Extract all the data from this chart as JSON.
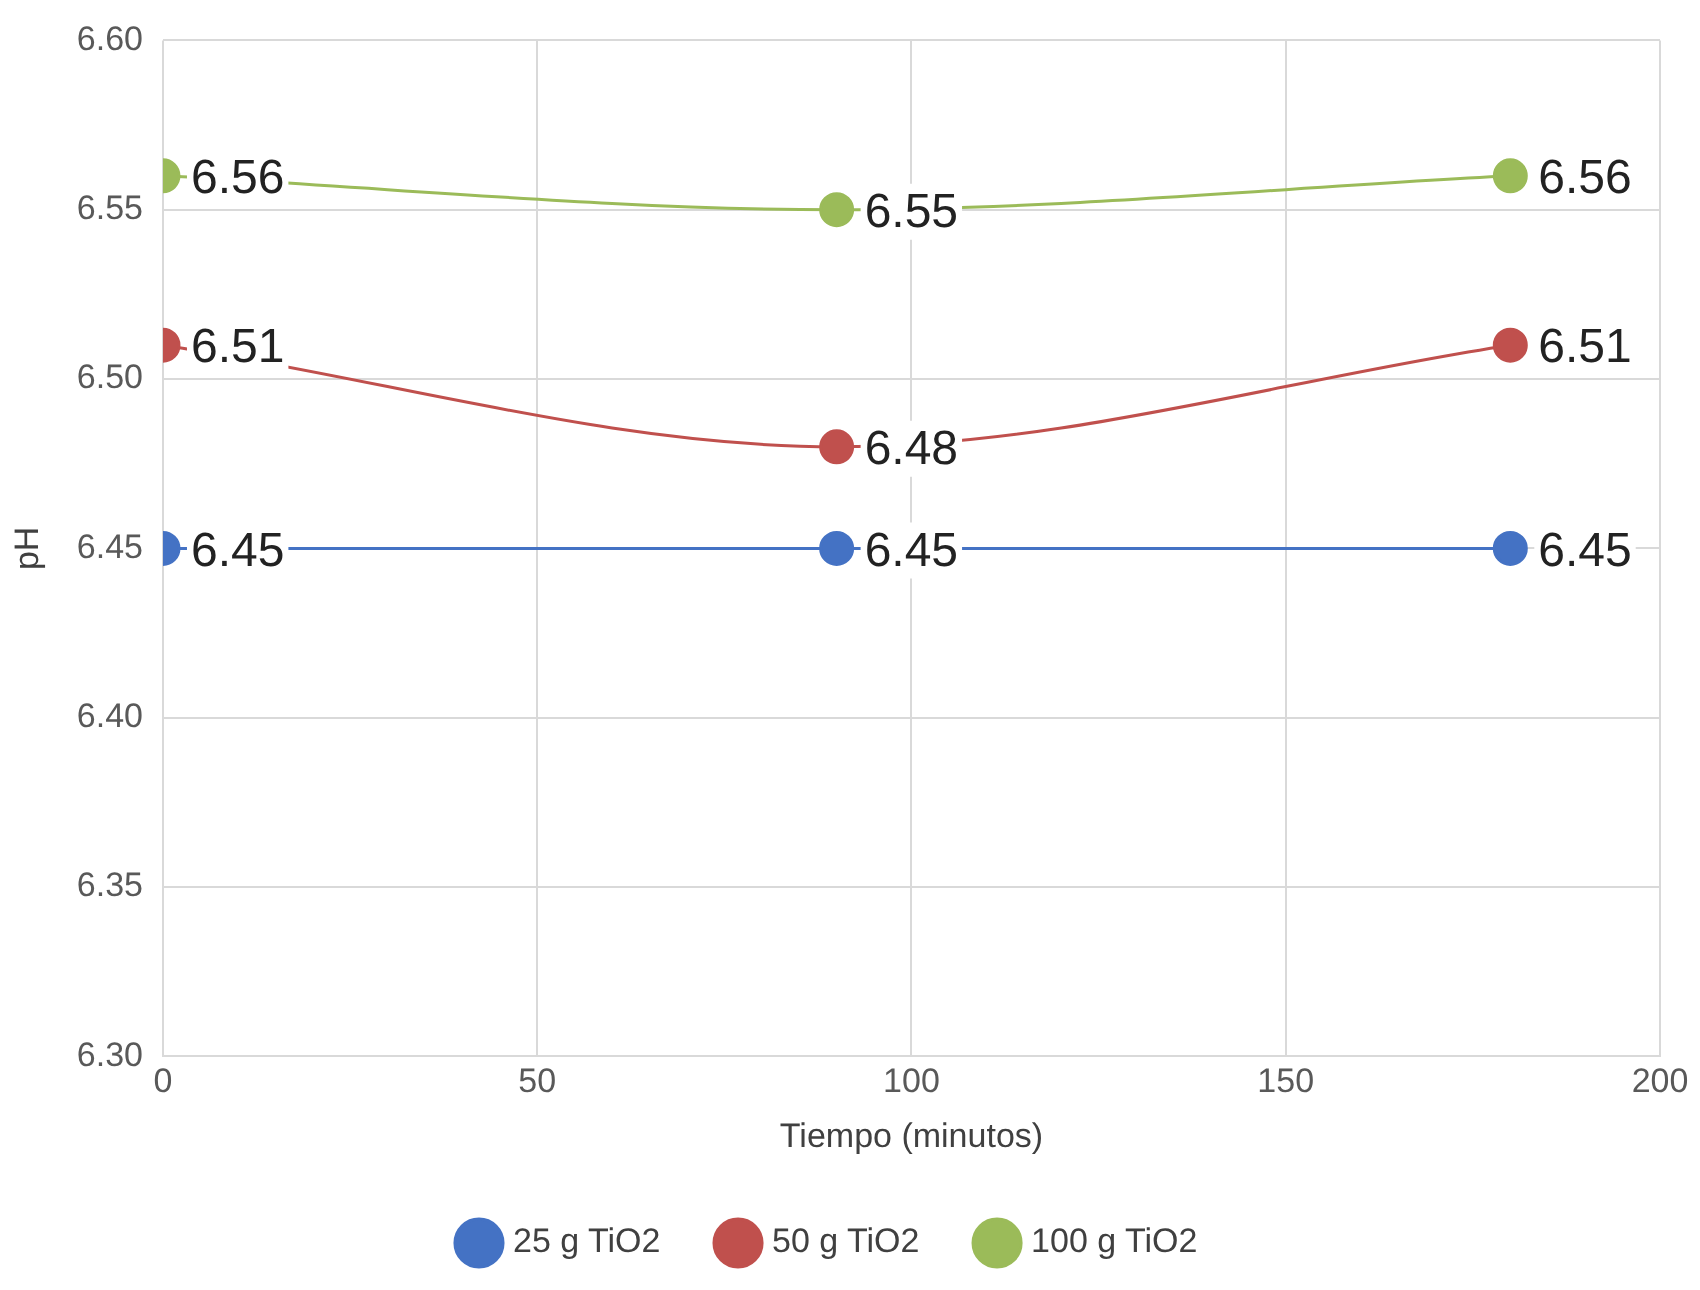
{
  "chart_data": {
    "type": "line",
    "xlabel": "Tiempo (minutos)",
    "ylabel": "pH",
    "x": [
      0,
      90,
      180
    ],
    "series": [
      {
        "name": "25 g TiO2",
        "color": "#4472c4",
        "values": [
          6.45,
          6.45,
          6.45
        ]
      },
      {
        "name": "50 g TiO2",
        "color": "#c0504d",
        "values": [
          6.51,
          6.48,
          6.51
        ]
      },
      {
        "name": "100 g TiO2",
        "color": "#9bbb59",
        "values": [
          6.56,
          6.55,
          6.56
        ]
      }
    ],
    "xlim": [
      0,
      200
    ],
    "xticks": [
      0,
      50,
      100,
      150,
      200
    ],
    "ylim": [
      6.3,
      6.6
    ],
    "yticks": [
      {
        "value": 6.3,
        "label": "6.30"
      },
      6.35,
      {
        "value": 6.4,
        "label": "6.40"
      },
      6.45,
      {
        "value": 6.5,
        "label": "6.50"
      },
      6.55,
      {
        "value": 6.6,
        "label": "6.60"
      }
    ],
    "grid": true,
    "legend": "bottom",
    "marker": "circle",
    "line_style": "solid",
    "data_labels": true
  }
}
